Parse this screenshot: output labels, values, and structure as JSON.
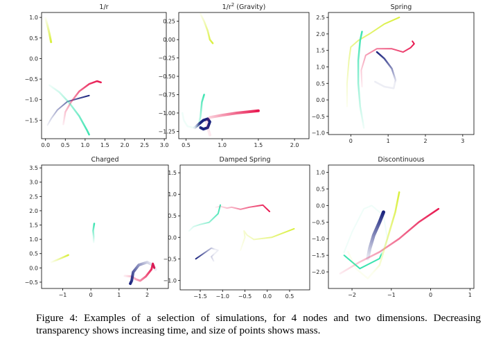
{
  "caption": "Figure 4: Examples of a selection of simulations, for 4 nodes and two dimensions. Decreasing transparency shows increasing time, and size of points shows mass.",
  "colors": {
    "navy": "#1a237e",
    "crimson": "#e8174f",
    "teal": "#3be3b0",
    "yellow": "#d9ef3c"
  },
  "panels": [
    {
      "title": "1/r",
      "title_sup": "",
      "title_suffix": "",
      "xlim": [
        -0.1,
        3.05
      ],
      "ylim": [
        -1.95,
        1.12
      ],
      "xticks": [
        0.0,
        0.5,
        1.0,
        1.5,
        2.0,
        2.5,
        3.0
      ],
      "yticks": [
        1.0,
        0.5,
        0.0,
        -0.5,
        -1.0,
        -1.5
      ],
      "tick_labels_x": [
        "0.0",
        "0.5",
        "1.0",
        "1.5",
        "2.0",
        "2.5",
        "3.0"
      ],
      "tick_labels_y": [
        "1.0",
        "0.5",
        "0.0",
        "−0.5",
        "−1.0",
        "−1.5"
      ],
      "tracks": [
        {
          "color": "yellow",
          "width": 3,
          "points": [
            [
              0.0,
              0.98
            ],
            [
              0.05,
              0.8
            ],
            [
              0.1,
              0.6
            ],
            [
              0.14,
              0.4
            ]
          ]
        },
        {
          "color": "navy",
          "width": 2,
          "points": [
            [
              0.05,
              -1.62
            ],
            [
              0.15,
              -1.45
            ],
            [
              0.3,
              -1.25
            ],
            [
              0.55,
              -1.05
            ],
            [
              0.8,
              -0.98
            ],
            [
              1.1,
              -0.9
            ]
          ]
        },
        {
          "color": "crimson",
          "width": 2.5,
          "points": [
            [
              0.45,
              -1.6
            ],
            [
              0.5,
              -1.3
            ],
            [
              0.65,
              -1.05
            ],
            [
              0.85,
              -0.8
            ],
            [
              1.1,
              -0.62
            ],
            [
              1.3,
              -0.55
            ],
            [
              1.4,
              -0.58
            ]
          ]
        },
        {
          "color": "teal",
          "width": 2.5,
          "points": [
            [
              0.1,
              -0.65
            ],
            [
              0.35,
              -0.82
            ],
            [
              0.6,
              -1.08
            ],
            [
              0.85,
              -1.4
            ],
            [
              1.05,
              -1.75
            ],
            [
              1.1,
              -1.85
            ]
          ]
        }
      ]
    },
    {
      "title": "1/r",
      "title_sup": "2",
      "title_suffix": " (Gravity)",
      "xlim": [
        0.4,
        2.2
      ],
      "ylim": [
        -1.35,
        0.37
      ],
      "xticks": [
        0.5,
        1.0,
        1.5,
        2.0
      ],
      "yticks": [
        0.25,
        0.0,
        -0.25,
        -0.5,
        -0.75,
        -1.0,
        -1.25
      ],
      "tick_labels_x": [
        "0.5",
        "1.0",
        "1.5",
        "2.0"
      ],
      "tick_labels_y": [
        "0.25",
        "0.00",
        "−0.25",
        "−0.50",
        "−0.75",
        "−1.00",
        "−1.25"
      ],
      "tracks": [
        {
          "color": "yellow",
          "width": 2.5,
          "points": [
            [
              0.7,
              0.35
            ],
            [
              0.75,
              0.25
            ],
            [
              0.8,
              0.12
            ],
            [
              0.83,
              0.0
            ],
            [
              0.87,
              -0.05
            ]
          ]
        },
        {
          "color": "teal",
          "width": 2.5,
          "points": [
            [
              0.45,
              -1.0
            ],
            [
              0.47,
              -1.1
            ],
            [
              0.52,
              -1.18
            ],
            [
              0.6,
              -1.2
            ],
            [
              0.66,
              -1.18
            ],
            [
              0.68,
              -1.14
            ],
            [
              0.7,
              -1.05
            ],
            [
              0.72,
              -0.85
            ],
            [
              0.75,
              -0.75
            ]
          ]
        },
        {
          "color": "navy",
          "width": 4,
          "points": [
            [
              0.62,
              -1.2
            ],
            [
              0.68,
              -1.15
            ],
            [
              0.74,
              -1.1
            ],
            [
              0.8,
              -1.08
            ],
            [
              0.83,
              -1.12
            ],
            [
              0.8,
              -1.2
            ],
            [
              0.74,
              -1.22
            ],
            [
              0.7,
              -1.2
            ]
          ]
        },
        {
          "color": "crimson",
          "width": 4,
          "points": [
            [
              0.83,
              -1.3
            ],
            [
              0.8,
              -1.2
            ],
            [
              0.78,
              -1.12
            ],
            [
              0.83,
              -1.06
            ],
            [
              1.0,
              -1.03
            ],
            [
              1.2,
              -1.0
            ],
            [
              1.5,
              -0.97
            ]
          ]
        }
      ]
    },
    {
      "title": "Spring",
      "title_sup": "",
      "title_suffix": "",
      "xlim": [
        -0.6,
        3.3
      ],
      "ylim": [
        -1.05,
        2.65
      ],
      "xticks": [
        0,
        1,
        2,
        3
      ],
      "yticks": [
        2.5,
        2.0,
        1.5,
        1.0,
        0.5,
        0.0,
        -0.5,
        -1.0
      ],
      "tick_labels_x": [
        "0",
        "1",
        "2",
        "3"
      ],
      "tick_labels_y": [
        "2.5",
        "2.0",
        "1.5",
        "1.0",
        "0.5",
        "0.0",
        "−0.5",
        "−1.0"
      ],
      "tracks": [
        {
          "color": "yellow",
          "width": 2,
          "points": [
            [
              -0.1,
              -0.2
            ],
            [
              -0.1,
              0.5
            ],
            [
              -0.05,
              1.2
            ],
            [
              0.0,
              1.6
            ],
            [
              0.2,
              1.8
            ],
            [
              0.5,
              2.0
            ],
            [
              0.9,
              2.3
            ],
            [
              1.3,
              2.5
            ]
          ]
        },
        {
          "color": "teal",
          "width": 2.5,
          "points": [
            [
              0.35,
              -0.85
            ],
            [
              0.25,
              -0.2
            ],
            [
              0.2,
              0.5
            ],
            [
              0.2,
              1.2
            ],
            [
              0.25,
              1.8
            ],
            [
              0.3,
              2.07
            ]
          ]
        },
        {
          "color": "crimson",
          "width": 2,
          "points": [
            [
              0.3,
              0.4
            ],
            [
              0.28,
              0.9
            ],
            [
              0.4,
              1.35
            ],
            [
              0.7,
              1.55
            ],
            [
              1.1,
              1.55
            ],
            [
              1.4,
              1.45
            ],
            [
              1.6,
              1.58
            ],
            [
              1.7,
              1.7
            ],
            [
              1.65,
              1.78
            ]
          ]
        },
        {
          "color": "navy",
          "width": 2.5,
          "points": [
            [
              0.65,
              0.55
            ],
            [
              0.9,
              0.4
            ],
            [
              1.15,
              0.35
            ],
            [
              1.2,
              0.6
            ],
            [
              1.1,
              0.95
            ],
            [
              0.9,
              1.25
            ],
            [
              0.7,
              1.45
            ]
          ]
        }
      ]
    },
    {
      "title": "Charged",
      "title_sup": "",
      "title_suffix": "",
      "xlim": [
        -1.75,
        2.75
      ],
      "ylim": [
        -0.72,
        3.6
      ],
      "xticks": [
        -1,
        0,
        1,
        2
      ],
      "yticks": [
        3.5,
        3.0,
        2.5,
        2.0,
        1.5,
        1.0,
        0.5,
        0.0,
        -0.5
      ],
      "tick_labels_x": [
        "−1",
        "0",
        "1",
        "2"
      ],
      "tick_labels_y": [
        "3.5",
        "3.0",
        "2.5",
        "2.0",
        "1.5",
        "1.0",
        "0.5",
        "0.0",
        "−0.5"
      ],
      "tracks": [
        {
          "color": "yellow",
          "width": 2.5,
          "points": [
            [
              -1.4,
              0.2
            ],
            [
              -1.1,
              0.32
            ],
            [
              -0.8,
              0.45
            ]
          ]
        },
        {
          "color": "teal",
          "width": 2.5,
          "points": [
            [
              0.1,
              0.9
            ],
            [
              0.1,
              1.1
            ],
            [
              0.08,
              1.3
            ],
            [
              0.12,
              1.55
            ]
          ]
        },
        {
          "color": "crimson",
          "width": 3,
          "points": [
            [
              1.2,
              -0.28
            ],
            [
              1.45,
              -0.3
            ],
            [
              1.6,
              -0.4
            ],
            [
              1.75,
              -0.45
            ],
            [
              1.95,
              -0.3
            ],
            [
              2.15,
              -0.05
            ],
            [
              2.2,
              0.15
            ],
            [
              2.25,
              0.0
            ]
          ]
        },
        {
          "color": "navy",
          "width": 4,
          "points": [
            [
              2.3,
              -0.05
            ],
            [
              2.2,
              0.1
            ],
            [
              2.0,
              0.2
            ],
            [
              1.7,
              0.1
            ],
            [
              1.5,
              -0.15
            ],
            [
              1.45,
              -0.45
            ],
            [
              1.4,
              -0.55
            ]
          ]
        }
      ]
    },
    {
      "title": "Damped Spring",
      "title_sup": "",
      "title_suffix": "",
      "xlim": [
        -1.95,
        0.95
      ],
      "ylim": [
        -1.22,
        1.68
      ],
      "xticks": [
        -1.5,
        -1.0,
        -0.5,
        0.0,
        0.5
      ],
      "yticks": [
        1.5,
        1.0,
        0.5,
        0.0,
        -0.5,
        -1.0
      ],
      "tick_labels_x": [
        "−1.5",
        "−1.0",
        "−0.5",
        "0.0",
        "0.5"
      ],
      "tick_labels_y": [
        "1.5",
        "1.0",
        "0.5",
        "0.0",
        "−0.5",
        "−1.0"
      ],
      "tracks": [
        {
          "color": "teal",
          "width": 2,
          "points": [
            [
              -1.75,
              0.15
            ],
            [
              -1.65,
              0.25
            ],
            [
              -1.5,
              0.3
            ],
            [
              -1.3,
              0.35
            ],
            [
              -1.1,
              0.55
            ],
            [
              -1.05,
              0.75
            ]
          ]
        },
        {
          "color": "navy",
          "width": 2,
          "points": [
            [
              -1.2,
              -0.55
            ],
            [
              -1.25,
              -0.45
            ],
            [
              -1.15,
              -0.35
            ],
            [
              -1.1,
              -0.3
            ],
            [
              -1.25,
              -0.25
            ],
            [
              -1.6,
              -0.5
            ]
          ]
        },
        {
          "color": "yellow",
          "width": 2,
          "points": [
            [
              -0.6,
              -0.3
            ],
            [
              -0.55,
              -0.15
            ],
            [
              -0.5,
              0.0
            ],
            [
              -0.52,
              0.15
            ],
            [
              -0.45,
              0.05
            ],
            [
              -0.3,
              -0.05
            ],
            [
              0.1,
              0.0
            ],
            [
              0.6,
              0.2
            ]
          ]
        },
        {
          "color": "crimson",
          "width": 2,
          "points": [
            [
              -1.15,
              0.7
            ],
            [
              -1.05,
              0.72
            ],
            [
              -0.9,
              0.68
            ],
            [
              -0.8,
              0.7
            ],
            [
              -0.6,
              0.65
            ],
            [
              -0.4,
              0.7
            ],
            [
              -0.1,
              0.75
            ],
            [
              0.05,
              0.6
            ]
          ]
        }
      ]
    },
    {
      "title": "Discontinuous",
      "title_sup": "",
      "title_suffix": "",
      "xlim": [
        -2.6,
        1.1
      ],
      "ylim": [
        -2.5,
        1.22
      ],
      "xticks": [
        -2,
        -1,
        0,
        1
      ],
      "yticks": [
        1.0,
        0.5,
        0.0,
        -0.5,
        -1.0,
        -1.5,
        -2.0
      ],
      "tick_labels_x": [
        "−2",
        "−1",
        "0",
        "1"
      ],
      "tick_labels_y": [
        "1.0",
        "0.5",
        "0.0",
        "−0.5",
        "−1.0",
        "−1.5",
        "−2.0"
      ],
      "tracks": [
        {
          "color": "crimson",
          "width": 2.5,
          "points": [
            [
              -2.3,
              -2.05
            ],
            [
              -1.8,
              -1.7
            ],
            [
              -1.3,
              -1.4
            ],
            [
              -0.8,
              -1.0
            ],
            [
              -0.3,
              -0.5
            ],
            [
              0.2,
              -0.1
            ]
          ]
        },
        {
          "color": "teal",
          "width": 2,
          "points": [
            [
              -2.2,
              -1.4
            ],
            [
              -2.0,
              -0.8
            ],
            [
              -1.7,
              -0.1
            ],
            [
              -1.5,
              0.0
            ],
            [
              -1.2,
              -0.3
            ],
            [
              -1.1,
              -1.0
            ],
            [
              -1.3,
              -1.6
            ],
            [
              -1.8,
              -1.9
            ],
            [
              -2.2,
              -1.5
            ]
          ]
        },
        {
          "color": "yellow",
          "width": 2.5,
          "points": [
            [
              -2.1,
              -1.4
            ],
            [
              -1.9,
              -1.9
            ],
            [
              -1.6,
              -2.2
            ],
            [
              -1.3,
              -1.8
            ],
            [
              -1.1,
              -1.0
            ],
            [
              -0.9,
              -0.2
            ],
            [
              -0.8,
              0.4
            ]
          ]
        },
        {
          "color": "navy",
          "width": 5,
          "points": [
            [
              -1.6,
              -1.6
            ],
            [
              -1.55,
              -1.3
            ],
            [
              -1.45,
              -0.9
            ],
            [
              -1.3,
              -0.5
            ],
            [
              -1.2,
              -0.2
            ]
          ]
        }
      ]
    }
  ]
}
